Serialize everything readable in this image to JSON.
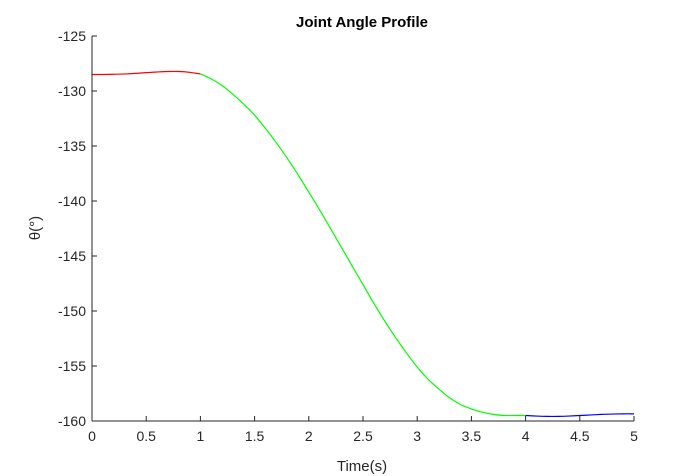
{
  "chart_data": {
    "type": "line",
    "title": "Joint Angle Profile",
    "xlabel": "Time(s)",
    "ylabel": "θ(°)",
    "xlim": [
      0,
      5
    ],
    "ylim": [
      -160,
      -125
    ],
    "xticks": [
      0,
      0.5,
      1,
      1.5,
      2,
      2.5,
      3,
      3.5,
      4,
      4.5,
      5
    ],
    "yticks": [
      -160,
      -155,
      -150,
      -145,
      -140,
      -135,
      -130,
      -125
    ],
    "grid": false,
    "series": [
      {
        "color": "#ff0000",
        "x": [
          0,
          0.1,
          0.2,
          0.3,
          0.4,
          0.5,
          0.6,
          0.7,
          0.8,
          0.9,
          1.0
        ],
        "y": [
          -128.5,
          -128.5,
          -128.48,
          -128.45,
          -128.4,
          -128.33,
          -128.27,
          -128.23,
          -128.23,
          -128.3,
          -128.45
        ]
      },
      {
        "color": "#00ff00",
        "x": [
          1.0,
          1.1,
          1.2,
          1.3,
          1.4,
          1.5,
          1.6,
          1.7,
          1.8,
          1.9,
          2.0,
          2.1,
          2.2,
          2.3,
          2.4,
          2.5,
          2.6,
          2.7,
          2.8,
          2.9,
          3.0,
          3.1,
          3.2,
          3.3,
          3.4,
          3.5,
          3.6,
          3.7,
          3.8,
          3.9,
          4.0
        ],
        "y": [
          -128.45,
          -128.9,
          -129.5,
          -130.3,
          -131.2,
          -132.2,
          -133.4,
          -134.7,
          -136.1,
          -137.6,
          -139.2,
          -140.8,
          -142.5,
          -144.2,
          -145.9,
          -147.6,
          -149.3,
          -150.9,
          -152.4,
          -153.8,
          -155.1,
          -156.2,
          -157.1,
          -157.9,
          -158.5,
          -158.9,
          -159.2,
          -159.4,
          -159.5,
          -159.5,
          -159.5
        ]
      },
      {
        "color": "#0000ff",
        "x": [
          4.0,
          4.1,
          4.2,
          4.3,
          4.4,
          4.5,
          4.6,
          4.7,
          4.8,
          4.9,
          5.0
        ],
        "y": [
          -159.5,
          -159.55,
          -159.58,
          -159.58,
          -159.55,
          -159.5,
          -159.45,
          -159.4,
          -159.37,
          -159.35,
          -159.35
        ]
      }
    ]
  }
}
